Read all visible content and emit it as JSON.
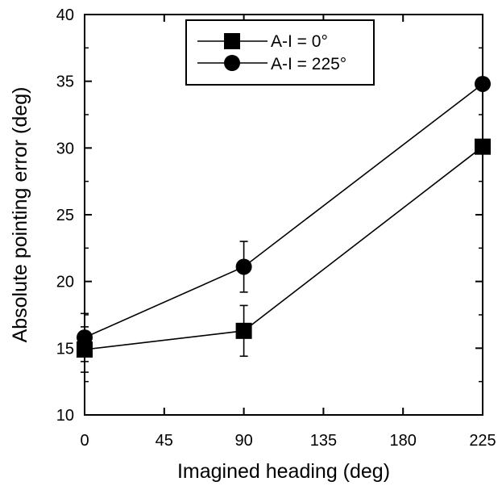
{
  "chart_data": {
    "type": "line",
    "x": [
      0,
      90,
      225
    ],
    "x_ticks": [
      "0",
      "45",
      "90",
      "135",
      "180",
      "225"
    ],
    "y_ticks": [
      "10",
      "15",
      "20",
      "25",
      "30",
      "35",
      "40"
    ],
    "xlim": [
      0,
      225
    ],
    "ylim": [
      10,
      40
    ],
    "xlabel": "Imagined heading (deg)",
    "ylabel": "Absolute pointing error (deg)",
    "grid": false,
    "legend_position": "top-center",
    "series": [
      {
        "name": "A-I = 0°",
        "marker": "square",
        "values": [
          14.9,
          16.3,
          30.1
        ],
        "error": [
          1.7,
          1.9,
          0.5
        ]
      },
      {
        "name": "A-I = 225°",
        "marker": "circle",
        "values": [
          15.8,
          21.1,
          34.8
        ],
        "error": [
          1.8,
          1.9,
          0.4
        ]
      }
    ]
  }
}
